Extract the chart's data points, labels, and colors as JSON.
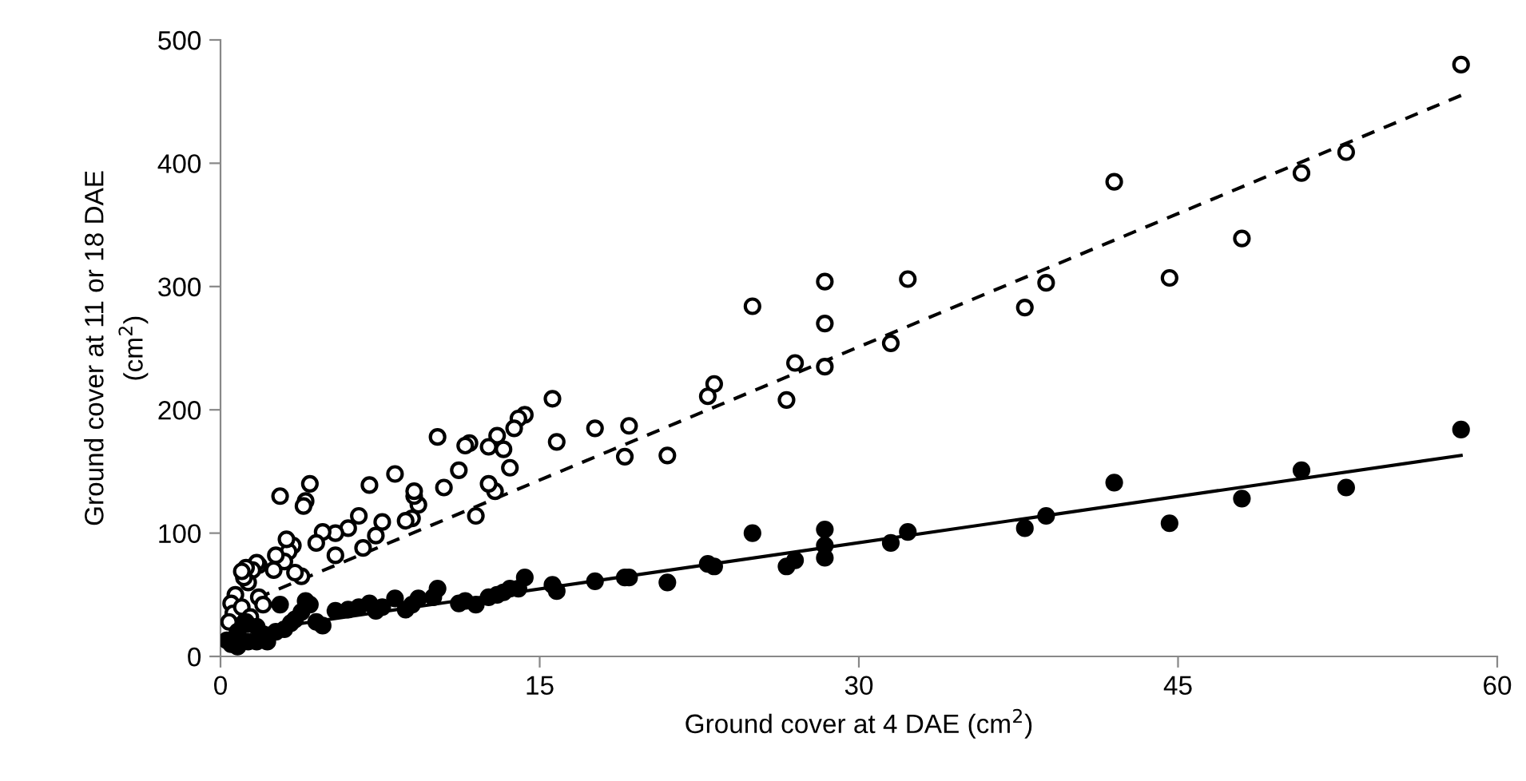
{
  "chart_data": {
    "type": "scatter",
    "xlabel": "Ground cover at 4 DAE (cm$^{2}$)",
    "ylabel": "Ground cover at 11 or 18 DAE\n(cm$^{2}$)",
    "xlim": [
      0,
      60
    ],
    "xticks": [
      0,
      15,
      30,
      45,
      60
    ],
    "ylim": [
      0,
      500
    ],
    "yticks": [
      0,
      100,
      200,
      300,
      400,
      500
    ],
    "grid": false,
    "legend": false,
    "series": [
      {
        "marker": "circle",
        "color": "#ffffff",
        "x": [
          25,
          28.4,
          28.4,
          28.4,
          26.6,
          27,
          31.5,
          32.3,
          37.8,
          38.8,
          42,
          44.6,
          48,
          50.8,
          52.9,
          58.3,
          23.2,
          22.9,
          21,
          19,
          19.2,
          17.6,
          15.6,
          15.8,
          14.3,
          14,
          13.8,
          13.6,
          13.3,
          13,
          12.9,
          12.6,
          12.6,
          12,
          11.7,
          11.5,
          11.2,
          10.5,
          10.2,
          9.3,
          9.1,
          9.1,
          9,
          8.7,
          8.2,
          7.6,
          7.3,
          7,
          6.7,
          6.5,
          6,
          5.4,
          5.4,
          4.8,
          4.5,
          4.2,
          4,
          3.9,
          3.8,
          3.5,
          3.4,
          3.2,
          3.1,
          3,
          2.8,
          2.6,
          2.5,
          1.8,
          1.7,
          1.5,
          1.3,
          1.2,
          1.1,
          1,
          1.8,
          2,
          0.7,
          0.5,
          0.6,
          0.4,
          1,
          1.4
        ],
        "values": [
          284,
          304,
          270,
          235,
          208,
          238,
          254,
          306,
          283,
          303,
          385,
          307,
          339,
          392,
          409,
          480,
          221,
          211,
          163,
          162,
          187,
          185,
          209,
          174,
          196,
          193,
          185,
          153,
          168,
          179,
          134,
          170,
          140,
          114,
          173,
          171,
          151,
          137,
          178,
          123,
          130,
          134,
          112,
          110,
          148,
          109,
          98,
          139,
          88,
          114,
          104,
          100,
          82,
          101,
          92,
          140,
          126,
          122,
          65,
          68,
          90,
          85,
          95,
          77,
          130,
          82,
          70,
          74,
          76,
          70,
          60,
          72,
          64,
          69,
          48,
          42,
          50,
          43,
          35,
          28,
          40,
          32
        ]
      },
      {
        "marker": "circle",
        "color": "#000000",
        "x": [
          58.3,
          52.9,
          50.8,
          48,
          44.6,
          42,
          38.8,
          37.8,
          32.3,
          31.5,
          28.4,
          28.4,
          28.4,
          27,
          26.6,
          25,
          23.2,
          22.9,
          21,
          19.2,
          19,
          17.6,
          15.8,
          15.6,
          14.3,
          14,
          13.6,
          13.3,
          13,
          12.6,
          12,
          11.5,
          11.2,
          10.2,
          10,
          9.3,
          9,
          8.7,
          8.2,
          7.6,
          7.3,
          7,
          6.5,
          6,
          5.4,
          4.8,
          4.5,
          4.2,
          4,
          3.8,
          3.5,
          3.3,
          3,
          2.8,
          2.6,
          2,
          1.7,
          1.2,
          0.8,
          0.5,
          0.8,
          1.3,
          0.3,
          1.7,
          2.2
        ],
        "values": [
          184,
          137,
          151,
          128,
          108,
          141,
          114,
          104,
          101,
          92,
          103,
          90,
          80,
          78,
          73,
          100,
          73,
          75,
          60,
          64,
          64,
          61,
          53,
          58,
          64,
          55,
          55,
          52,
          50,
          48,
          42,
          45,
          43,
          55,
          48,
          47,
          42,
          38,
          47,
          40,
          37,
          43,
          40,
          38,
          37,
          25,
          28,
          42,
          45,
          36,
          30,
          27,
          22,
          42,
          20,
          18,
          12,
          28,
          20,
          10,
          8,
          12,
          13,
          24,
          12
        ]
      },
      {
        "type": "line",
        "line_style": "dashed",
        "color": "#000000",
        "x": [
          0.7,
          58.3
        ],
        "values": [
          40,
          455
        ]
      },
      {
        "type": "line",
        "line_style": "solid",
        "color": "#000000",
        "x": [
          0.3,
          58.3
        ],
        "values": [
          18,
          163
        ]
      }
    ]
  }
}
